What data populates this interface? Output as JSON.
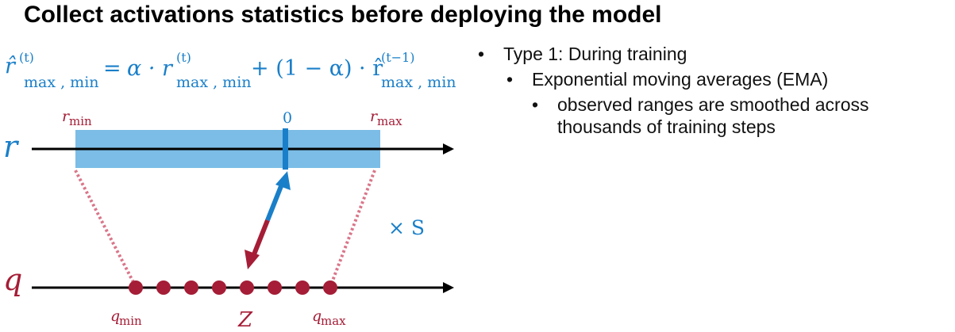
{
  "title": "Collect activations statistics before deploying the model",
  "formula": {
    "lhs_base": "r̂",
    "lhs_sup": "(t)",
    "lhs_sub": "max , min",
    "equals": "=",
    "alpha_dot": "α · r",
    "term1_sup": "(t)",
    "term1_sub": "max , min",
    "plus": "+ (1 − α) · r̂",
    "term2_sup": "(t−1)",
    "term2_sub": "max , min"
  },
  "diagram": {
    "r_axis_label": "r",
    "q_axis_label": "q",
    "r_min_base": "r",
    "r_min_sub": "min",
    "zero_label": "0",
    "r_max_base": "r",
    "r_max_sub": "max",
    "scale_label": "× S",
    "q_min_base": "q",
    "q_min_sub": "min",
    "z_label": "Z",
    "q_max_base": "q",
    "q_max_sub": "max"
  },
  "colors": {
    "blue": "#1a7fc9",
    "blue_fill": "#7bbde6",
    "red": "#a51d36",
    "red_dotted": "#d9768a",
    "axis": "#000000"
  },
  "bullets": [
    {
      "level": 1,
      "text": "Type 1: During training"
    },
    {
      "level": 2,
      "text": "Exponential moving averages (EMA)"
    },
    {
      "level": 3,
      "text": "observed ranges are smoothed across thousands of training steps"
    }
  ]
}
